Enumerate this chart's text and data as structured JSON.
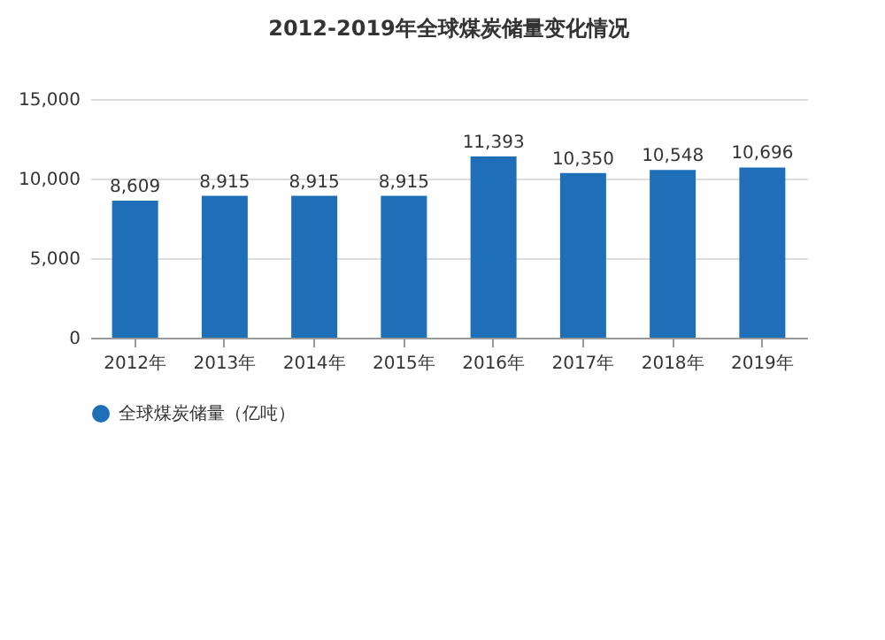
{
  "chart_data": {
    "type": "bar",
    "title": "2012-2019年全球煤炭储量变化情况",
    "categories": [
      "2012年",
      "2013年",
      "2014年",
      "2015年",
      "2016年",
      "2017年",
      "2018年",
      "2019年"
    ],
    "series": [
      {
        "name": "全球煤炭储量（亿吨）",
        "color": "#1f6fb8",
        "values": [
          8609,
          8915,
          8915,
          8915,
          11393,
          10350,
          10548,
          10696
        ],
        "value_labels": [
          "8,609",
          "8,915",
          "8,915",
          "8,915",
          "11,393",
          "10,350",
          "10,548",
          "10,696"
        ]
      }
    ],
    "ylim": [
      0,
      15000
    ],
    "yticks": [
      0,
      {
        "value": 5000,
        "label": "5,000"
      },
      {
        "value": 10000,
        "label": "10,000"
      },
      {
        "value": 15000,
        "label": "15,000"
      }
    ],
    "grid": "y",
    "legend": "bottom"
  }
}
